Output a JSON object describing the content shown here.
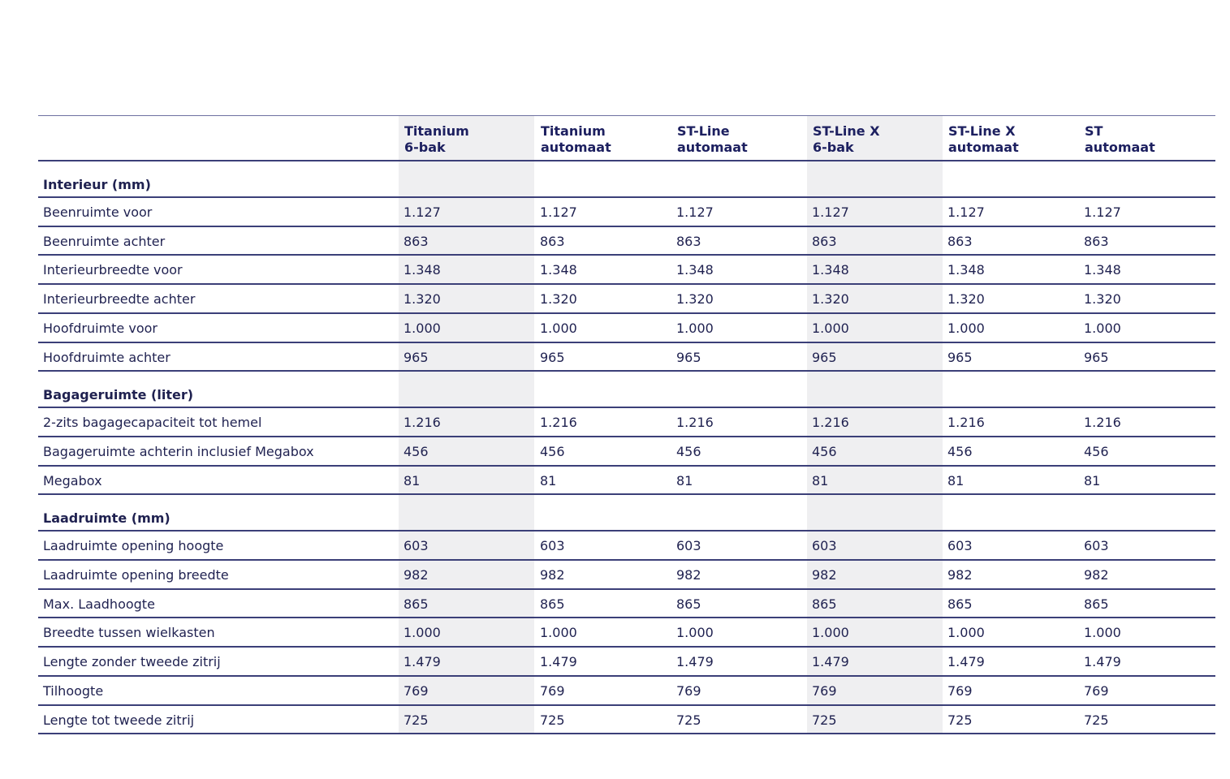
{
  "table": {
    "columns": [
      {
        "lines": [
          "Titanium",
          "6-bak"
        ]
      },
      {
        "lines": [
          "Titanium",
          "automaat"
        ]
      },
      {
        "lines": [
          "ST-Line",
          "automaat"
        ]
      },
      {
        "lines": [
          "ST-Line X",
          "6-bak"
        ]
      },
      {
        "lines": [
          "ST-Line X",
          "automaat"
        ]
      },
      {
        "lines": [
          "ST",
          "automaat"
        ]
      }
    ],
    "sections": [
      {
        "title": "Interieur (mm)",
        "rows": [
          {
            "label": "Beenruimte voor",
            "values": [
              "1.127",
              "1.127",
              "1.127",
              "1.127",
              "1.127",
              "1.127"
            ]
          },
          {
            "label": "Beenruimte achter",
            "values": [
              "863",
              "863",
              "863",
              "863",
              "863",
              "863"
            ]
          },
          {
            "label": "Interieurbreedte voor",
            "values": [
              "1.348",
              "1.348",
              "1.348",
              "1.348",
              "1.348",
              "1.348"
            ]
          },
          {
            "label": "Interieurbreedte achter",
            "values": [
              "1.320",
              "1.320",
              "1.320",
              "1.320",
              "1.320",
              "1.320"
            ]
          },
          {
            "label": "Hoofdruimte voor",
            "values": [
              "1.000",
              "1.000",
              "1.000",
              "1.000",
              "1.000",
              "1.000"
            ]
          },
          {
            "label": "Hoofdruimte achter",
            "values": [
              "965",
              "965",
              "965",
              "965",
              "965",
              "965"
            ]
          }
        ]
      },
      {
        "title": "Bagageruimte (liter)",
        "rows": [
          {
            "label": "2-zits bagagecapaciteit tot hemel",
            "values": [
              "1.216",
              "1.216",
              "1.216",
              "1.216",
              "1.216",
              "1.216"
            ]
          },
          {
            "label": "Bagageruimte achterin inclusief Megabox",
            "values": [
              "456",
              "456",
              "456",
              "456",
              "456",
              "456"
            ]
          },
          {
            "label": "Megabox",
            "values": [
              "81",
              "81",
              "81",
              "81",
              "81",
              "81"
            ]
          }
        ]
      },
      {
        "title": "Laadruimte (mm)",
        "rows": [
          {
            "label": "Laadruimte opening hoogte",
            "values": [
              "603",
              "603",
              "603",
              "603",
              "603",
              "603"
            ]
          },
          {
            "label": "Laadruimte opening breedte",
            "values": [
              "982",
              "982",
              "982",
              "982",
              "982",
              "982"
            ]
          },
          {
            "label": "Max. Laadhoogte",
            "values": [
              "865",
              "865",
              "865",
              "865",
              "865",
              "865"
            ]
          },
          {
            "label": "Breedte tussen wielkasten",
            "values": [
              "1.000",
              "1.000",
              "1.000",
              "1.000",
              "1.000",
              "1.000"
            ]
          },
          {
            "label": "Lengte zonder tweede zitrij",
            "values": [
              "1.479",
              "1.479",
              "1.479",
              "1.479",
              "1.479",
              "1.479"
            ]
          },
          {
            "label": "Tilhoogte",
            "values": [
              "769",
              "769",
              "769",
              "769",
              "769",
              "769"
            ]
          },
          {
            "label": "Lengte tot tweede zitrij",
            "values": [
              "725",
              "725",
              "725",
              "725",
              "725",
              "725"
            ]
          }
        ]
      }
    ]
  }
}
